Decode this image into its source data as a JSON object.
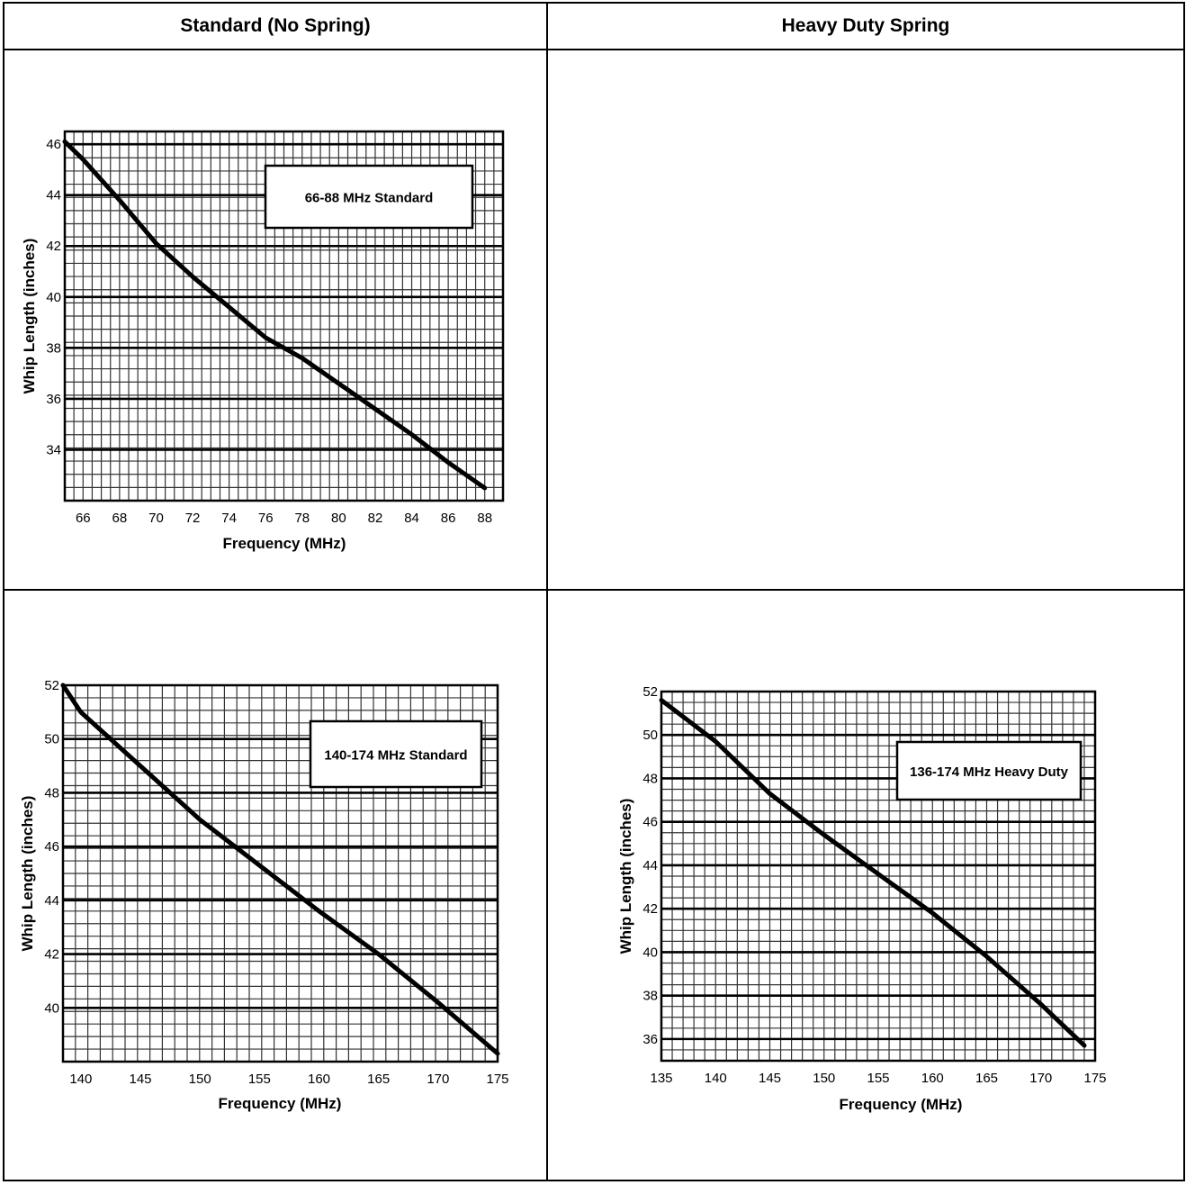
{
  "headers": {
    "left": "Standard (No Spring)",
    "right": "Heavy Duty Spring"
  },
  "chart_data": [
    {
      "type": "line",
      "annotation": "66-88 MHz Standard",
      "xlabel": "Frequency (MHz)",
      "ylabel": "Whip Length (inches)",
      "xlim": [
        65,
        89
      ],
      "ylim": [
        32,
        46.5
      ],
      "xticks": [
        66,
        68,
        70,
        72,
        74,
        76,
        78,
        80,
        82,
        84,
        86,
        88
      ],
      "yticks": [
        34,
        36,
        38,
        40,
        42,
        44,
        46
      ],
      "grid": true,
      "series": [
        {
          "x": [
            65,
            66,
            68,
            70,
            72,
            74,
            76,
            78,
            80,
            82,
            84,
            86,
            88
          ],
          "y": [
            46.1,
            45.4,
            43.8,
            42.1,
            40.8,
            39.6,
            38.4,
            37.6,
            36.6,
            35.6,
            34.6,
            33.5,
            32.5
          ]
        }
      ]
    },
    {
      "type": "line",
      "annotation": "140-174 MHz Standard",
      "xlabel": "Frequency (MHz)",
      "ylabel": "Whip Length (inches)",
      "xlim": [
        138.5,
        175
      ],
      "ylim": [
        38,
        52
      ],
      "xticks": [
        140,
        145,
        150,
        155,
        160,
        165,
        170,
        175
      ],
      "yticks": [
        40,
        42,
        44,
        46,
        48,
        50,
        52
      ],
      "grid": true,
      "series": [
        {
          "x": [
            138.5,
            140,
            145,
            150,
            155,
            160,
            165,
            170,
            175
          ],
          "y": [
            52,
            51,
            49,
            47,
            45.3,
            43.6,
            42.0,
            40.2,
            38.3
          ]
        }
      ]
    },
    {
      "type": "line",
      "annotation": "136-174 MHz Heavy Duty",
      "xlabel": "Frequency (MHz)",
      "ylabel": "Whip Length (inches)",
      "xlim": [
        135,
        175
      ],
      "ylim": [
        35,
        52
      ],
      "xticks": [
        135,
        140,
        145,
        150,
        155,
        160,
        165,
        170,
        175
      ],
      "yticks": [
        36,
        38,
        40,
        42,
        44,
        46,
        48,
        50,
        52
      ],
      "grid": true,
      "series": [
        {
          "x": [
            135,
            140,
            145,
            150,
            155,
            160,
            165,
            170,
            174
          ],
          "y": [
            51.6,
            49.7,
            47.3,
            45.4,
            43.6,
            41.8,
            39.8,
            37.6,
            35.7
          ]
        }
      ]
    }
  ]
}
